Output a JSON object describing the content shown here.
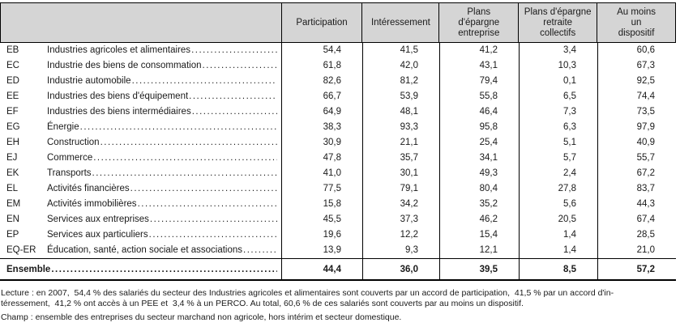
{
  "table": {
    "columns": [
      {
        "label": "Participation"
      },
      {
        "label": "Intéressement"
      },
      {
        "label": "Plans\nd'épargne\nentreprise"
      },
      {
        "label": "Plans d'épargne\nretraite\ncollectifs"
      },
      {
        "label": "Au moins\nun\ndispositif"
      }
    ],
    "rows": [
      {
        "code": "EB",
        "label": "Industries agricoles et alimentaires",
        "values": [
          "54,4",
          "41,5",
          "41,2",
          "3,4",
          "60,6"
        ]
      },
      {
        "code": "EC",
        "label": "Industrie des biens de consommation",
        "values": [
          "61,8",
          "42,0",
          "43,1",
          "10,3",
          "67,3"
        ]
      },
      {
        "code": "ED",
        "label": "Industrie automobile",
        "values": [
          "82,6",
          "81,2",
          "79,4",
          "0,1",
          "92,5"
        ]
      },
      {
        "code": "EE",
        "label": "Industries des biens d'équipement",
        "values": [
          "66,7",
          "53,9",
          "55,8",
          "6,5",
          "74,4"
        ]
      },
      {
        "code": "EF",
        "label": "Industries des biens intermédiaires",
        "values": [
          "64,9",
          "48,1",
          "46,4",
          "7,3",
          "73,5"
        ]
      },
      {
        "code": "EG",
        "label": "Énergie",
        "values": [
          "38,3",
          "93,3",
          "95,8",
          "6,3",
          "97,9"
        ]
      },
      {
        "code": "EH",
        "label": "Construction",
        "values": [
          "30,9",
          "21,1",
          "25,4",
          "5,1",
          "40,9"
        ]
      },
      {
        "code": "EJ",
        "label": "Commerce",
        "values": [
          "47,8",
          "35,7",
          "34,1",
          "5,7",
          "55,7"
        ]
      },
      {
        "code": "EK",
        "label": "Transports",
        "values": [
          "41,0",
          "30,1",
          "49,3",
          "2,4",
          "67,2"
        ]
      },
      {
        "code": "EL",
        "label": "Activités financières",
        "values": [
          "77,5",
          "79,1",
          "80,4",
          "27,8",
          "83,7"
        ]
      },
      {
        "code": "EM",
        "label": "Activités immobilières",
        "values": [
          "15,8",
          "34,2",
          "35,2",
          "5,6",
          "44,3"
        ]
      },
      {
        "code": "EN",
        "label": "Services aux entreprises",
        "values": [
          "45,5",
          "37,3",
          "46,2",
          "20,5",
          "67,4"
        ]
      },
      {
        "code": "EP",
        "label": "Services aux particuliers",
        "values": [
          "19,6",
          "12,2",
          "15,4",
          "1,4",
          "28,5"
        ]
      },
      {
        "code": "EQ-ER",
        "label": "Éducation, santé, action sociale et associations",
        "values": [
          "13,9",
          "9,3",
          "12,1",
          "1,4",
          "21,0"
        ]
      }
    ],
    "total": {
      "label": "Ensemble",
      "values": [
        "44,4",
        "36,0",
        "39,5",
        "8,5",
        "57,2"
      ]
    }
  },
  "footer": {
    "lecture": "Lecture : en 2007,  54,4 % des salariés du secteur des Industries agricoles et alimentaires sont couverts par un accord de participation,  41,5 % par un accord d'in-\ntéressement,  41,2 % ont accès à un PEE et  3,4 % à un PERCO. Au total, 60,6 % de ces salariés sont couverts par au moins un dispositif.",
    "champ": "Champ : ensemble des entreprises du secteur marchand non agricole, hors intérim et secteur domestique."
  },
  "colors": {
    "header_bg": "#d5d5d5",
    "border": "#000000",
    "text": "#1a1a1a"
  }
}
